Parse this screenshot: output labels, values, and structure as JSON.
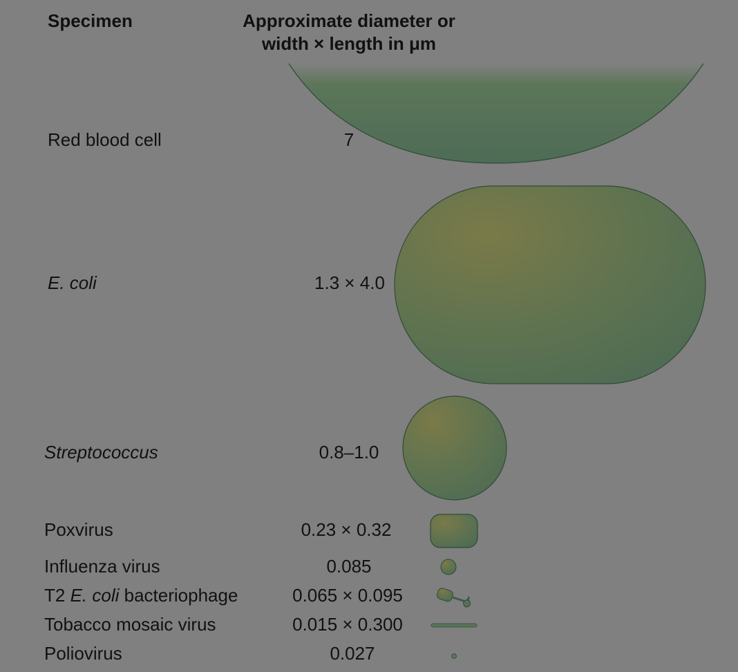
{
  "headers": {
    "specimen": "Specimen",
    "size_line1": "Approximate diameter or",
    "size_line2": "width × length in μm"
  },
  "rows": [
    {
      "label": "Red blood cell",
      "value": "7"
    },
    {
      "label": "E. coli",
      "value": "1.3 × 4.0"
    },
    {
      "label": "Streptococcus",
      "value": "0.8–1.0"
    },
    {
      "label": "Poxvirus",
      "value": "0.23 × 0.32"
    },
    {
      "label": "Influenza virus",
      "value": "0.085"
    },
    {
      "label_prefix": "T2 ",
      "label_italic": "E. coli",
      "label_suffix": " bacteriophage",
      "value": "0.065 × 0.095"
    },
    {
      "label": "Tobacco mosaic virus",
      "value": "0.015 × 0.300"
    },
    {
      "label": "Poliovirus",
      "value": "0.027"
    }
  ],
  "colors": {
    "background": "#808080",
    "cell_yellow": "#7a7a48",
    "cell_green": "#4e6b54",
    "outline": "#2f4a36"
  },
  "icons": [
    "red-blood-cell-shape",
    "rod-bacterium-shape",
    "sphere-bacterium-shape",
    "poxvirus-shape",
    "influenza-virus-shape",
    "bacteriophage-shape",
    "tobacco-mosaic-virus-shape",
    "poliovirus-shape"
  ]
}
